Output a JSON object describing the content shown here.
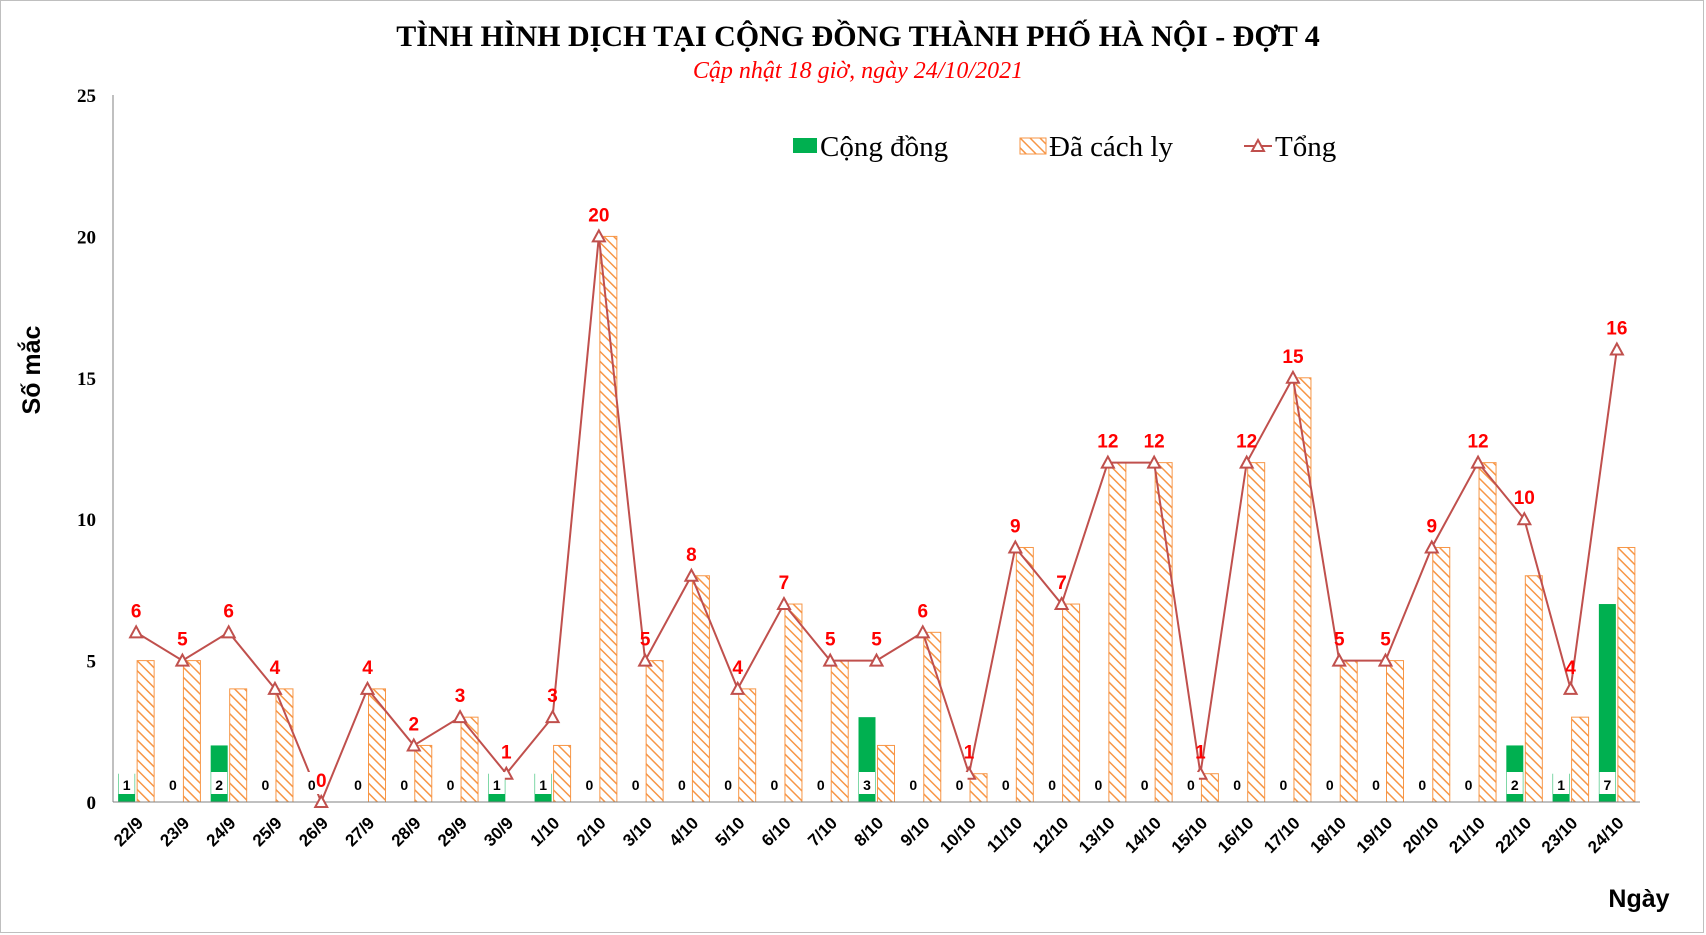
{
  "chart_data": {
    "type": "bar",
    "title": "TÌNH HÌNH DỊCH TẠI CỘNG ĐỒNG THÀNH PHỐ HÀ NỘI - ĐỢT 4",
    "subtitle": "Cập nhật 18 giờ, ngày 24/10/2021",
    "ylabel": "Số mắc",
    "xlabel": "Ngày",
    "ylim": [
      0,
      25
    ],
    "yticks": [
      "0",
      "5",
      "10",
      "15",
      "20",
      "25"
    ],
    "grid": false,
    "legend_position": "top-right",
    "categories": [
      "22/9",
      "23/9",
      "24/9",
      "25/9",
      "26/9",
      "27/9",
      "28/9",
      "29/9",
      "30/9",
      "1/10",
      "2/10",
      "3/10",
      "4/10",
      "5/10",
      "6/10",
      "7/10",
      "8/10",
      "9/10",
      "10/10",
      "11/10",
      "12/10",
      "13/10",
      "14/10",
      "15/10",
      "16/10",
      "17/10",
      "18/10",
      "19/10",
      "20/10",
      "21/10",
      "22/10",
      "23/10",
      "24/10"
    ],
    "series": [
      {
        "name": "Cộng đồng",
        "type": "bar",
        "color": "#00b050",
        "values": [
          1,
          0,
          2,
          0,
          0,
          0,
          0,
          0,
          1,
          1,
          0,
          0,
          0,
          0,
          0,
          0,
          3,
          0,
          0,
          0,
          0,
          0,
          0,
          0,
          0,
          0,
          0,
          0,
          0,
          0,
          2,
          1,
          7
        ]
      },
      {
        "name": "Đã cách ly",
        "type": "bar",
        "pattern": "orange-hatch",
        "color": "#f79646",
        "values": [
          5,
          5,
          4,
          4,
          0,
          4,
          2,
          3,
          0,
          2,
          20,
          5,
          8,
          4,
          7,
          5,
          2,
          6,
          1,
          9,
          7,
          12,
          12,
          1,
          12,
          15,
          5,
          5,
          9,
          12,
          8,
          3,
          9
        ]
      },
      {
        "name": "Tổng",
        "type": "line",
        "marker": "triangle",
        "color": "#c0504d",
        "values": [
          6,
          5,
          6,
          4,
          0,
          4,
          2,
          3,
          1,
          3,
          20,
          5,
          8,
          4,
          7,
          5,
          5,
          6,
          1,
          9,
          7,
          12,
          12,
          1,
          12,
          15,
          5,
          5,
          9,
          12,
          10,
          4,
          16
        ]
      }
    ]
  }
}
